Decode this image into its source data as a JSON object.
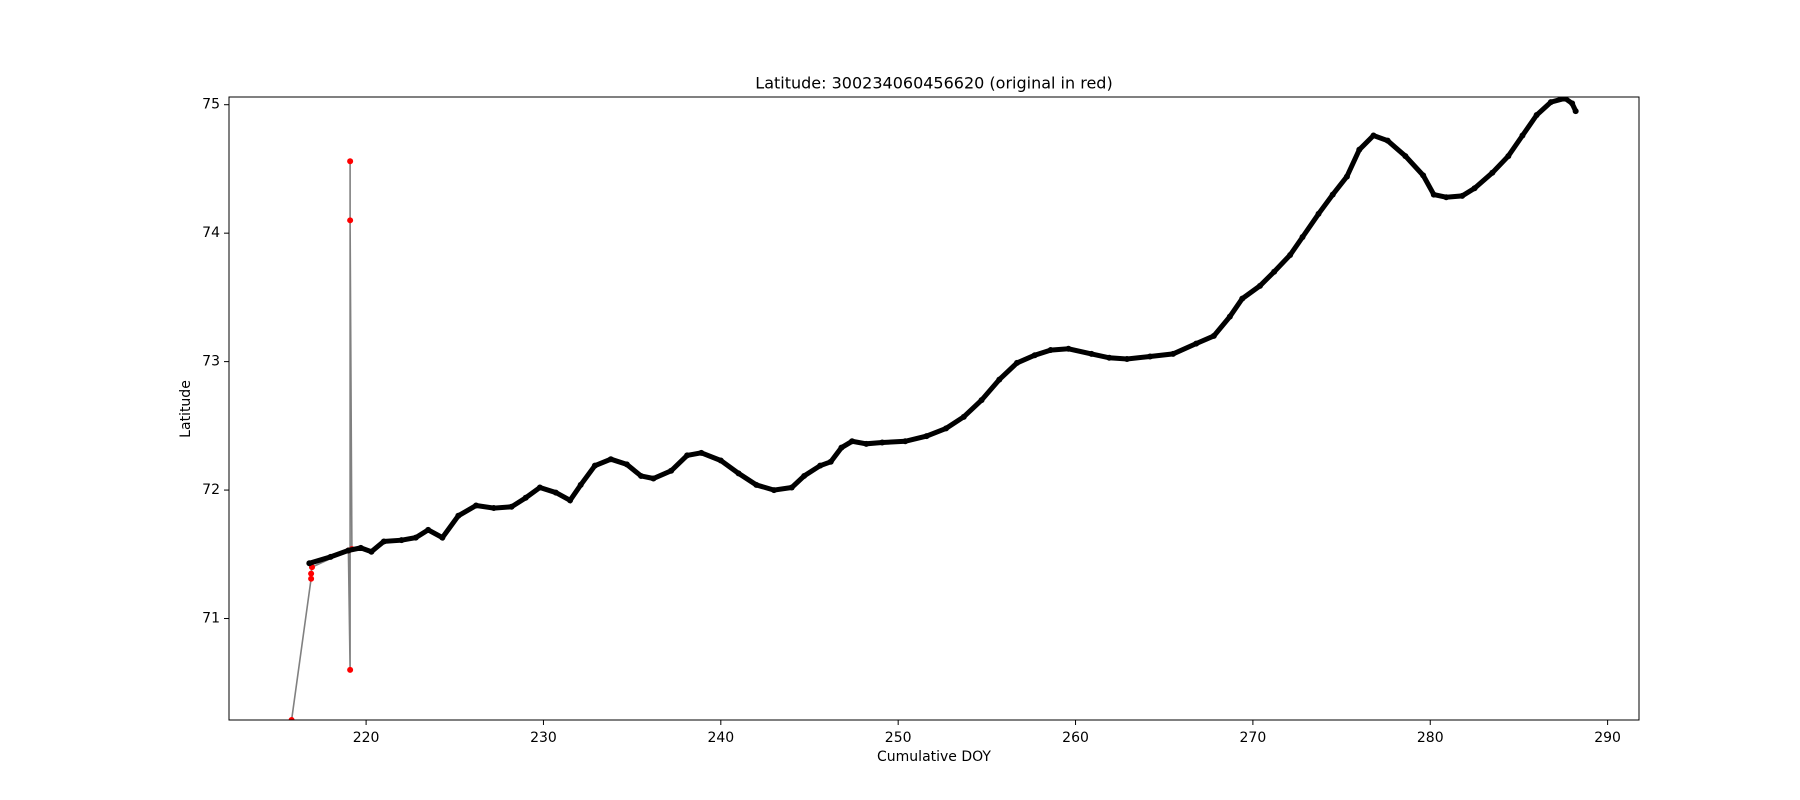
{
  "chart_data": {
    "type": "scatter",
    "title": "Latitude: 300234060456620 (original in red)",
    "x_label": "Cumulative DOY",
    "y_label": "Latitude",
    "xlim": [
      212.27,
      291.77
    ],
    "ylim": [
      70.21,
      75.06
    ],
    "xticks": [
      220,
      230,
      240,
      250,
      260,
      270,
      280,
      290
    ],
    "yticks": [
      71,
      72,
      73,
      74,
      75
    ],
    "grid": false,
    "series": [
      {
        "color": "red",
        "line_color": "gray",
        "x": [
          215.8,
          216.9,
          216.9,
          216.95,
          219.0,
          219.1,
          219.1,
          219.1,
          219.2
        ],
        "values": [
          70.21,
          71.31,
          71.35,
          71.4,
          71.53,
          70.6,
          74.56,
          74.1,
          71.54
        ]
      },
      {
        "color": "black",
        "line_color": "black",
        "x": [
          216.8,
          218.0,
          219.0,
          219.7,
          220.3,
          221.0,
          222.0,
          222.8,
          223.5,
          224.3,
          225.2,
          226.2,
          227.2,
          228.2,
          229.0,
          229.8,
          230.7,
          231.5,
          232.1,
          232.9,
          233.8,
          234.7,
          235.5,
          236.2,
          237.2,
          238.1,
          238.9,
          240.0,
          241.0,
          242.0,
          243.0,
          244.0,
          244.7,
          245.6,
          246.2,
          246.8,
          247.4,
          248.2,
          249.1,
          250.4,
          251.6,
          252.7,
          253.7,
          254.7,
          255.7,
          256.7,
          257.7,
          258.6,
          259.6,
          260.9,
          261.9,
          262.9,
          264.2,
          265.5,
          266.8,
          267.8,
          268.7,
          269.4,
          270.4,
          271.2,
          272.1,
          272.8,
          273.7,
          274.5,
          275.3,
          276.0,
          276.8,
          277.6,
          278.6,
          279.6,
          280.2,
          280.9,
          281.8,
          282.5,
          283.5,
          284.4,
          285.2,
          286.0,
          286.8,
          287.6,
          288.0,
          288.2
        ],
        "values": [
          71.43,
          71.48,
          71.53,
          71.55,
          71.52,
          71.6,
          71.61,
          71.63,
          71.69,
          71.63,
          71.8,
          71.88,
          71.86,
          71.87,
          71.94,
          72.02,
          71.98,
          71.92,
          72.04,
          72.19,
          72.24,
          72.2,
          72.11,
          72.09,
          72.15,
          72.27,
          72.29,
          72.23,
          72.13,
          72.04,
          72.0,
          72.02,
          72.11,
          72.19,
          72.22,
          72.33,
          72.38,
          72.36,
          72.37,
          72.38,
          72.42,
          72.48,
          72.57,
          72.7,
          72.86,
          72.99,
          73.05,
          73.09,
          73.1,
          73.06,
          73.03,
          73.02,
          73.04,
          73.06,
          73.14,
          73.2,
          73.35,
          73.49,
          73.59,
          73.7,
          73.83,
          73.97,
          74.15,
          74.3,
          74.44,
          74.65,
          74.76,
          74.72,
          74.6,
          74.45,
          74.3,
          74.28,
          74.29,
          74.35,
          74.47,
          74.6,
          74.76,
          74.92,
          75.02,
          75.05,
          75.01,
          74.95
        ]
      }
    ]
  }
}
